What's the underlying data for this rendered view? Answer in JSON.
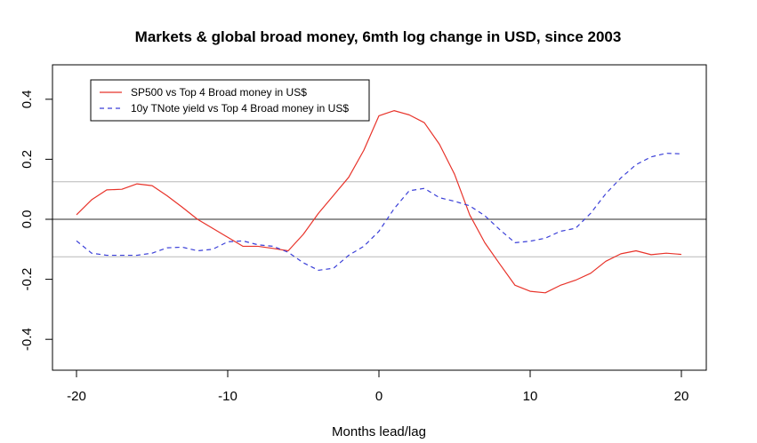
{
  "chart_data": {
    "type": "line",
    "title": "Markets & global broad money, 6mth log change in USD, since 2003",
    "xlabel": "Months lead/lag",
    "ylabel": "",
    "xlim": [
      -20,
      20
    ],
    "ylim": [
      -0.5,
      0.5
    ],
    "x_ticks": [
      -20,
      -10,
      0,
      10,
      20
    ],
    "y_ticks": [
      -0.4,
      -0.2,
      0.0,
      0.2,
      0.4
    ],
    "x_tick_labels": [
      "-20",
      "-10",
      "0",
      "10",
      "20"
    ],
    "y_tick_labels": [
      "-0.4",
      "-0.2",
      "0.0",
      "0.2",
      "0.4"
    ],
    "reference_lines": [
      0.125,
      0.0,
      -0.125
    ],
    "legend_position": "top-left",
    "x": [
      -20,
      -19,
      -18,
      -17,
      -16,
      -15,
      -14,
      -13,
      -12,
      -11,
      -10,
      -9,
      -8,
      -7,
      -6,
      -5,
      -4,
      -3,
      -2,
      -1,
      0,
      1,
      2,
      3,
      4,
      5,
      6,
      7,
      8,
      9,
      10,
      11,
      12,
      13,
      14,
      15,
      16,
      17,
      18,
      19,
      20
    ],
    "series": [
      {
        "name": "SP500 vs Top 4 Broad money in US$",
        "color": "#e8332a",
        "dash": "solid",
        "values": [
          0.015,
          0.065,
          0.098,
          0.1,
          0.118,
          0.112,
          0.078,
          0.04,
          0.0,
          -0.03,
          -0.06,
          -0.09,
          -0.09,
          -0.097,
          -0.105,
          -0.05,
          0.02,
          0.08,
          0.14,
          0.23,
          0.345,
          0.362,
          0.348,
          0.322,
          0.25,
          0.15,
          0.015,
          -0.078,
          -0.15,
          -0.22,
          -0.24,
          -0.245,
          -0.22,
          -0.203,
          -0.18,
          -0.14,
          -0.115,
          -0.105,
          -0.118,
          -0.113,
          -0.117
        ]
      },
      {
        "name": "10y TNote yield vs Top 4 Broad money in US$",
        "color": "#3a3fd8",
        "dash": "dashed",
        "values": [
          -0.072,
          -0.113,
          -0.12,
          -0.12,
          -0.12,
          -0.113,
          -0.095,
          -0.093,
          -0.105,
          -0.1,
          -0.075,
          -0.072,
          -0.085,
          -0.09,
          -0.11,
          -0.145,
          -0.17,
          -0.163,
          -0.12,
          -0.09,
          -0.04,
          0.035,
          0.095,
          0.103,
          0.072,
          0.06,
          0.045,
          0.012,
          -0.035,
          -0.078,
          -0.073,
          -0.063,
          -0.04,
          -0.03,
          0.02,
          0.085,
          0.138,
          0.182,
          0.208,
          0.22,
          0.218
        ]
      }
    ]
  }
}
